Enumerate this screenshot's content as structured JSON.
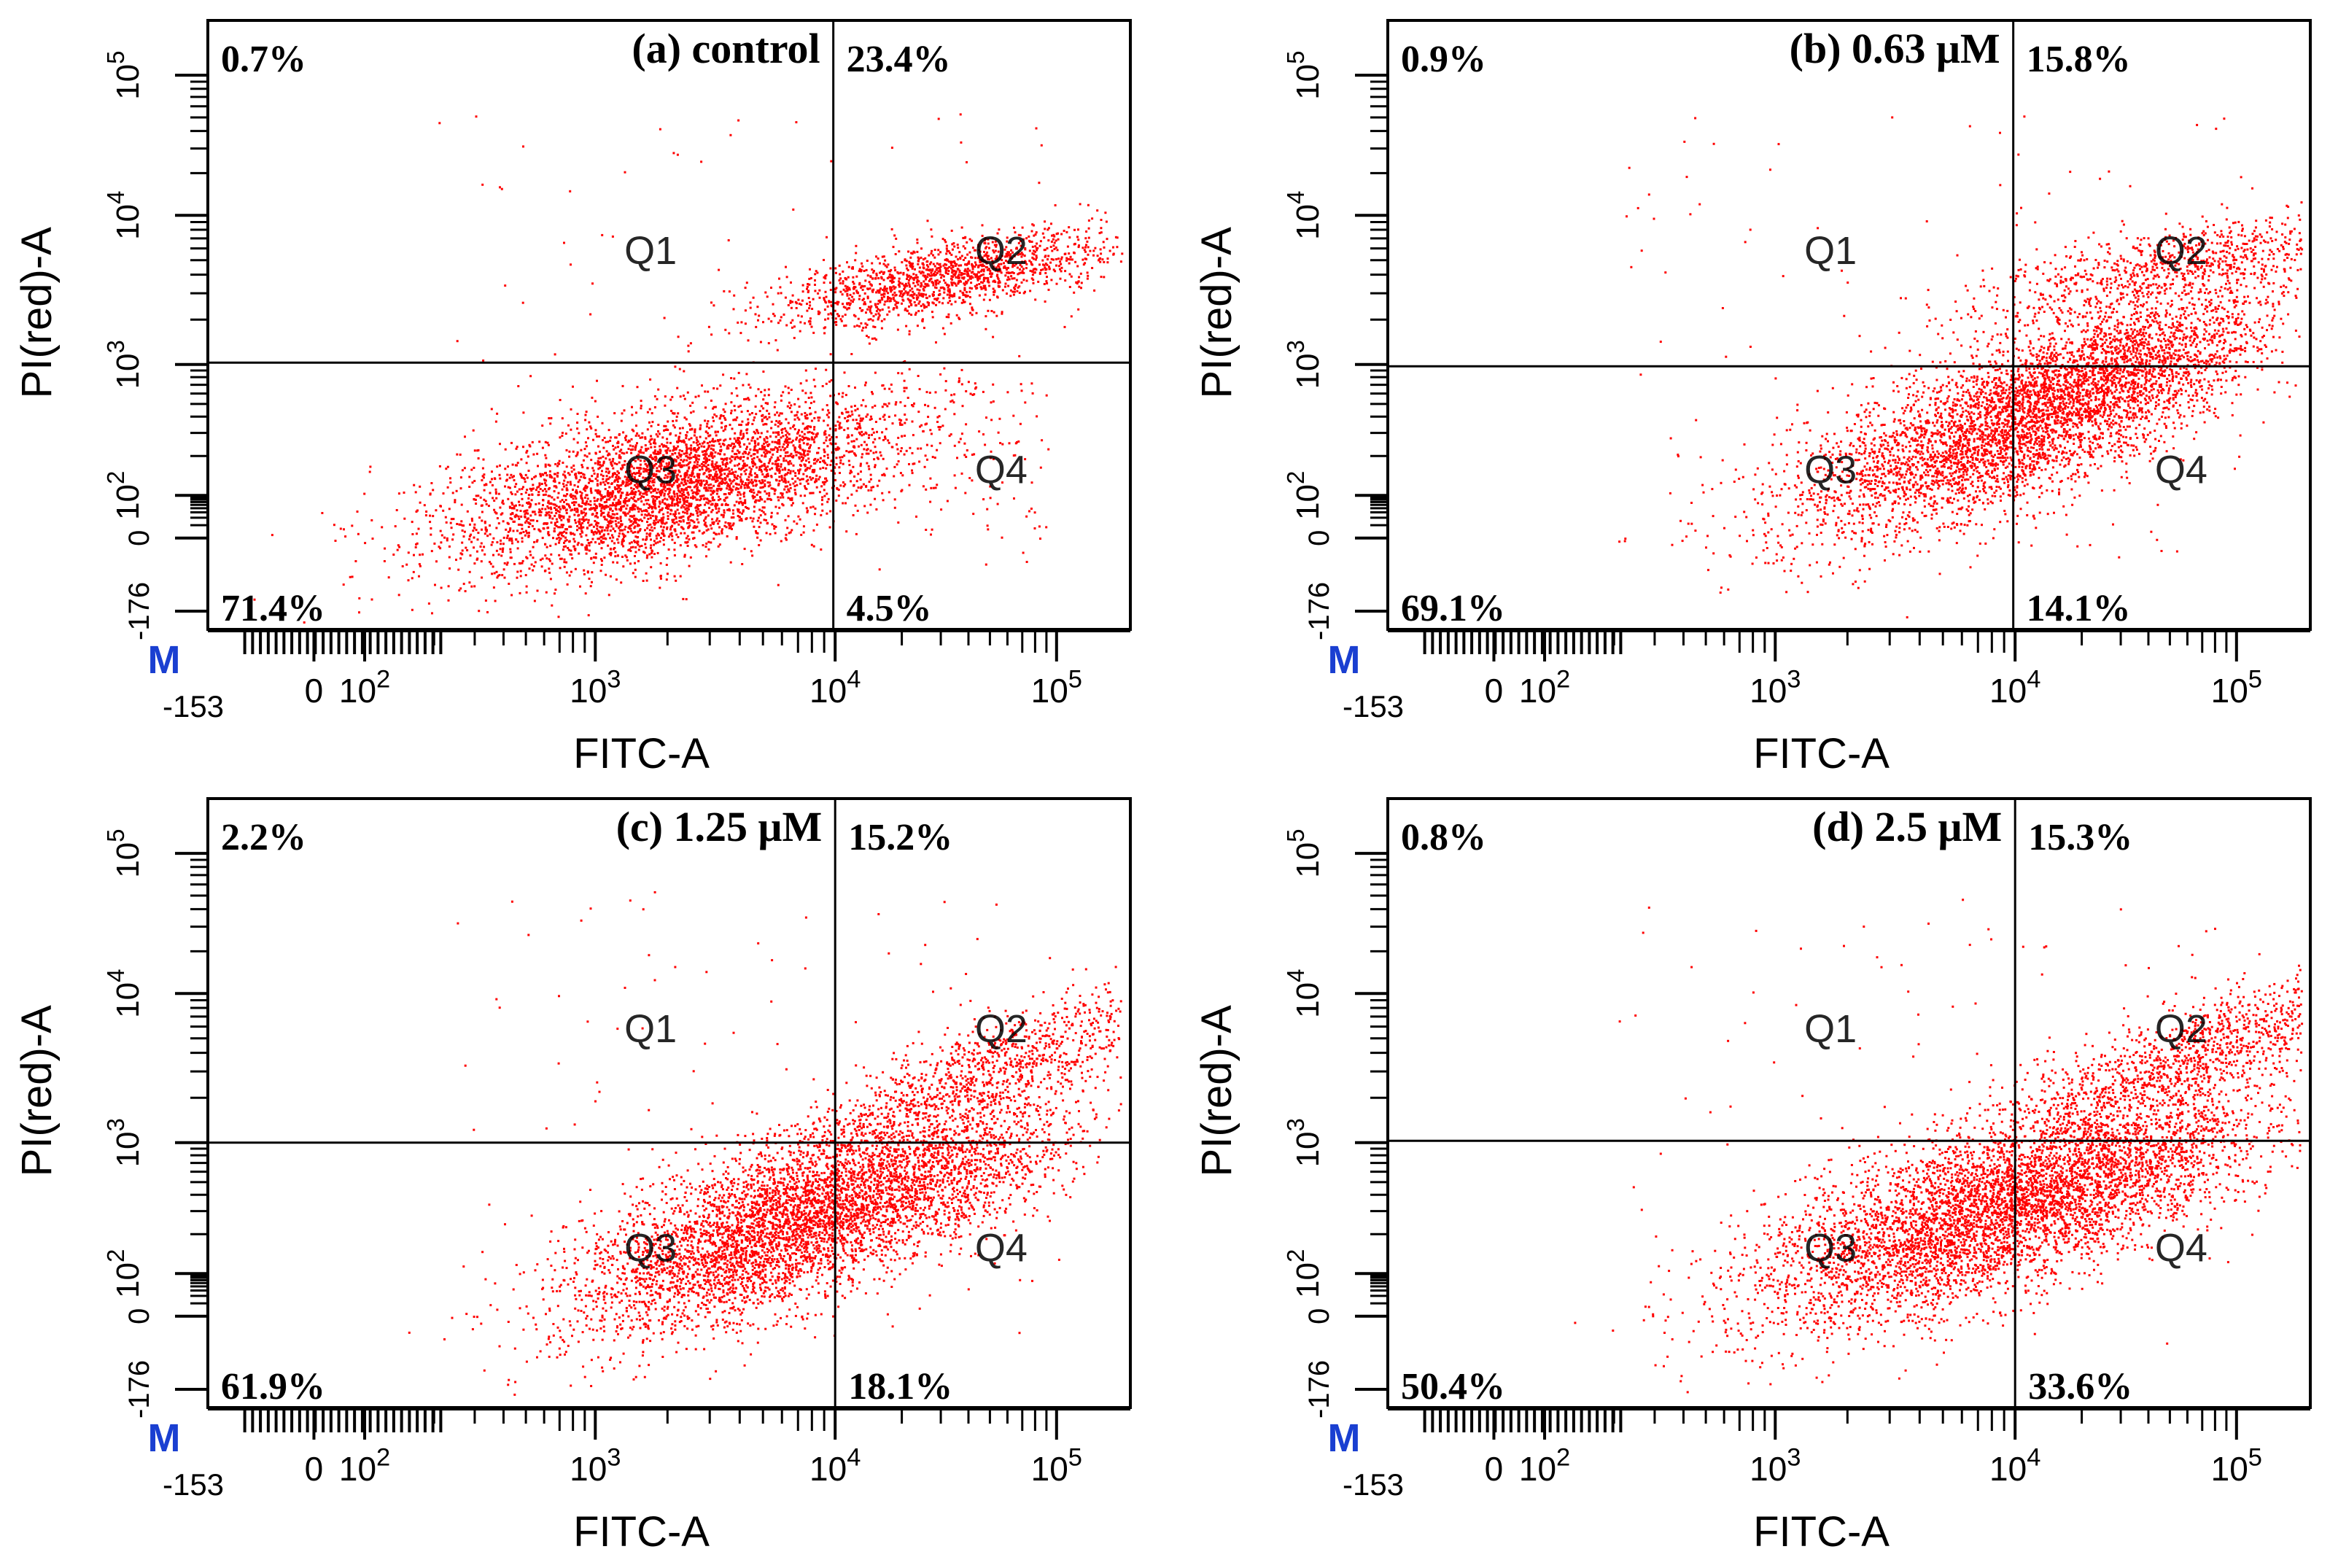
{
  "figure_type": "flow cytometry Annexin V-FITC / PI quadrant plots",
  "chart_data": [
    {
      "type": "scatter",
      "panel": "a",
      "title": "(a) control",
      "xlabel": "FITC-A",
      "ylabel": "PI(red)-A",
      "x_tick_labels": [
        "0",
        "10^2",
        "10^3",
        "10^4",
        "10^5"
      ],
      "y_tick_labels": [
        "-176",
        "0",
        "10^2",
        "10^3",
        "10^4",
        "10^5"
      ],
      "x_min_label": "-153",
      "marker_label": "M",
      "quadrant_labels": [
        "Q1",
        "Q2",
        "Q3",
        "Q4"
      ],
      "quadrant_percent": {
        "Q1": "0.7%",
        "Q2": "23.4%",
        "Q3": "71.4%",
        "Q4": "4.5%"
      },
      "color": "#ff0000"
    },
    {
      "type": "scatter",
      "panel": "b",
      "title": "(b) 0.63 μM",
      "xlabel": "FITC-A",
      "ylabel": "PI(red)-A",
      "x_tick_labels": [
        "0",
        "10^2",
        "10^3",
        "10^4",
        "10^5"
      ],
      "y_tick_labels": [
        "-176",
        "0",
        "10^2",
        "10^3",
        "10^4",
        "10^5"
      ],
      "x_min_label": "-153",
      "marker_label": "M",
      "quadrant_labels": [
        "Q1",
        "Q2",
        "Q3",
        "Q4"
      ],
      "quadrant_percent": {
        "Q1": "0.9%",
        "Q2": "15.8%",
        "Q3": "69.1%",
        "Q4": "14.1%"
      },
      "color": "#ff0000"
    },
    {
      "type": "scatter",
      "panel": "c",
      "title": "(c) 1.25 μM",
      "xlabel": "FITC-A",
      "ylabel": "PI(red)-A",
      "x_tick_labels": [
        "0",
        "10^2",
        "10^3",
        "10^4",
        "10^5"
      ],
      "y_tick_labels": [
        "-176",
        "0",
        "10^2",
        "10^3",
        "10^4",
        "10^5"
      ],
      "x_min_label": "-153",
      "marker_label": "M",
      "quadrant_labels": [
        "Q1",
        "Q2",
        "Q3",
        "Q4"
      ],
      "quadrant_percent": {
        "Q1": "2.2%",
        "Q2": "15.2%",
        "Q3": "61.9%",
        "Q4": "18.1%"
      },
      "color": "#ff0000"
    },
    {
      "type": "scatter",
      "panel": "d",
      "title": "(d) 2.5 μM",
      "xlabel": "FITC-A",
      "ylabel": "PI(red)-A",
      "x_tick_labels": [
        "0",
        "10^2",
        "10^3",
        "10^4",
        "10^5"
      ],
      "y_tick_labels": [
        "-176",
        "0",
        "10^2",
        "10^3",
        "10^4",
        "10^5"
      ],
      "x_min_label": "-153",
      "marker_label": "M",
      "quadrant_labels": [
        "Q1",
        "Q2",
        "Q3",
        "Q4"
      ],
      "quadrant_percent": {
        "Q1": "0.8%",
        "Q2": "15.3%",
        "Q3": "50.4%",
        "Q4": "33.6%"
      },
      "color": "#ff0000"
    }
  ]
}
